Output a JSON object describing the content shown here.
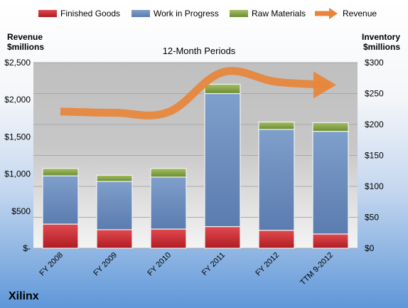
{
  "chart_data": {
    "type": "bar",
    "subtitle": "12-Month Periods",
    "company": "Xilinx",
    "left_axis_label": [
      "Revenue",
      "$millions"
    ],
    "right_axis_label": [
      "Inventory",
      "$millions"
    ],
    "left_ticks": [
      "$-",
      "$500",
      "$1,000",
      "$1,500",
      "$2,000",
      "$2,500"
    ],
    "right_ticks": [
      "$0",
      "$50",
      "$100",
      "$150",
      "$200",
      "$250",
      "$300"
    ],
    "left_ylim": [
      0,
      2500
    ],
    "right_ylim": [
      0,
      300
    ],
    "categories": [
      "FY 2008",
      "FY 2009",
      "FY 2010",
      "FY 2011",
      "FY 2012",
      "TTM 9-2012"
    ],
    "legend_position": "top",
    "grid": true,
    "series": [
      {
        "name": "Finished Goods",
        "axis": "right",
        "stack": true,
        "color": "#c8232a",
        "values": [
          39,
          30,
          31,
          35,
          29,
          23
        ]
      },
      {
        "name": "Work in Progress",
        "axis": "right",
        "stack": true,
        "color": "#6d8fbe",
        "values": [
          78,
          78,
          84,
          215,
          163,
          166
        ]
      },
      {
        "name": "Raw Materials",
        "axis": "right",
        "stack": true,
        "color": "#7e9e3f",
        "values": [
          12,
          10,
          14,
          15,
          12,
          14
        ]
      },
      {
        "name": "Revenue",
        "axis": "left",
        "type": "line",
        "color": "#e8853a",
        "values": [
          1840,
          1825,
          1834,
          2369,
          2241,
          2200
        ]
      }
    ]
  }
}
